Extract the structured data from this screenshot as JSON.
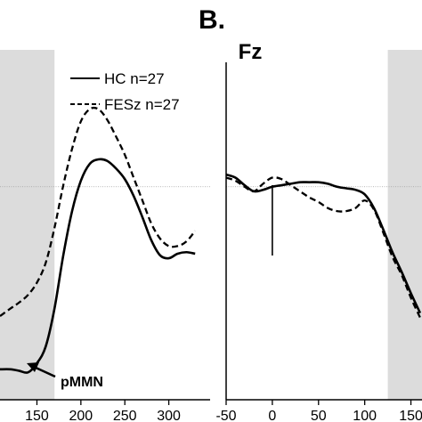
{
  "header": {
    "panel_label": "B."
  },
  "colors": {
    "shade": "#dcdcdc",
    "line": "#000000",
    "baseline": "#a0a0a0"
  },
  "chart_data": [
    {
      "type": "line",
      "title": "",
      "xlabel": "",
      "ylabel": "",
      "xlim": [
        108,
        347
      ],
      "ylim": [
        -14,
        9
      ],
      "grid": false,
      "legend": {
        "position": "top-right"
      },
      "x_ticks": [
        "150",
        "200",
        "250",
        "300"
      ],
      "shaded_x": [
        108,
        170
      ],
      "annotation": {
        "text": "pMMN",
        "x": 168,
        "y": -11.2
      },
      "baseline_y": 0,
      "series": [
        {
          "name": "HC n=27",
          "style": "solid",
          "x": [
            108,
            120,
            130,
            140,
            150,
            160,
            170,
            180,
            190,
            200,
            210,
            220,
            230,
            240,
            250,
            260,
            270,
            280,
            290,
            300,
            310,
            320,
            330
          ],
          "y": [
            -12,
            -12,
            -12.1,
            -12.2,
            -11.6,
            -10.5,
            -8,
            -4.5,
            -1.6,
            0.4,
            1.5,
            1.8,
            1.7,
            1.2,
            0.5,
            -0.6,
            -2,
            -3.5,
            -4.5,
            -4.7,
            -4.4,
            -4.3,
            -4.4
          ]
        },
        {
          "name": "FESz n=27",
          "style": "dashed",
          "x": [
            108,
            120,
            130,
            140,
            150,
            160,
            170,
            180,
            190,
            200,
            210,
            220,
            230,
            240,
            250,
            260,
            270,
            280,
            290,
            300,
            310,
            320,
            330
          ],
          "y": [
            -8.5,
            -8,
            -7.6,
            -7.1,
            -6.3,
            -5,
            -2.7,
            0.1,
            2.5,
            4.3,
            5.1,
            5.1,
            4.4,
            3.3,
            2.1,
            0.6,
            -0.9,
            -2.4,
            -3.4,
            -3.9,
            -3.9,
            -3.6,
            -2.9
          ]
        }
      ]
    },
    {
      "type": "line",
      "title": "Fz",
      "xlabel": "",
      "ylabel": "",
      "xlim": [
        -50,
        162
      ],
      "ylim": [
        -14,
        9
      ],
      "grid": false,
      "x_ticks": [
        "-50",
        "0",
        "50",
        "100",
        "150"
      ],
      "shaded_x": [
        125,
        162
      ],
      "baseline_y": 0,
      "stimulus_marker_x": 0,
      "series": [
        {
          "name": "HC n=27",
          "style": "solid",
          "x": [
            -50,
            -40,
            -30,
            -20,
            -10,
            0,
            10,
            20,
            30,
            40,
            50,
            60,
            70,
            80,
            90,
            100,
            110,
            120,
            130,
            140,
            150,
            160
          ],
          "y": [
            0.8,
            0.6,
            0.1,
            -0.3,
            -0.2,
            0,
            0.1,
            0.2,
            0.3,
            0.3,
            0.3,
            0.2,
            0,
            -0.1,
            -0.2,
            -0.5,
            -1.4,
            -2.8,
            -4.3,
            -5.6,
            -7,
            -8.3
          ]
        },
        {
          "name": "FESz n=27",
          "style": "dashed",
          "x": [
            -50,
            -40,
            -30,
            -20,
            -10,
            0,
            10,
            20,
            30,
            40,
            50,
            60,
            70,
            80,
            90,
            100,
            110,
            120,
            130,
            140,
            150,
            160
          ],
          "y": [
            0.6,
            0.4,
            0,
            -0.3,
            0.2,
            0.6,
            0.5,
            0.1,
            -0.3,
            -0.7,
            -1,
            -1.4,
            -1.6,
            -1.6,
            -1.4,
            -0.9,
            -1.5,
            -3,
            -4.6,
            -5.8,
            -7.3,
            -8.6
          ]
        }
      ]
    }
  ]
}
